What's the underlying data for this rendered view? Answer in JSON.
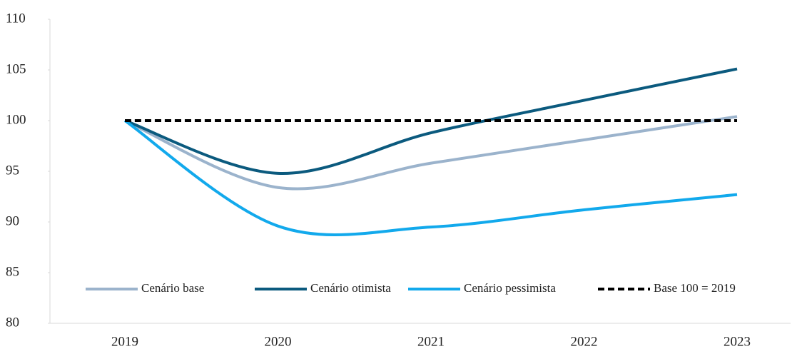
{
  "chart_data": {
    "type": "line",
    "categories": [
      "2019",
      "2020",
      "2021",
      "2022",
      "2023"
    ],
    "series": [
      {
        "name": "Cenário base",
        "color": "#9bb3cc",
        "values": [
          100,
          93.4,
          95.8,
          98.1,
          100.4
        ]
      },
      {
        "name": "Cenário otimista",
        "color": "#0b5a7e",
        "values": [
          100,
          94.8,
          98.8,
          102.0,
          105.1
        ]
      },
      {
        "name": "Cenário pessimista",
        "color": "#12a9ec",
        "values": [
          100,
          89.6,
          89.5,
          91.2,
          92.7
        ]
      },
      {
        "name": "Base 100 = 2019",
        "color": "#000000",
        "dashed": true,
        "values": [
          100,
          100,
          100,
          100,
          100
        ]
      }
    ],
    "ylim": [
      80,
      110
    ],
    "yticks": [
      80,
      85,
      90,
      95,
      100,
      105,
      110
    ],
    "smooth": true,
    "legend": "bottom"
  }
}
